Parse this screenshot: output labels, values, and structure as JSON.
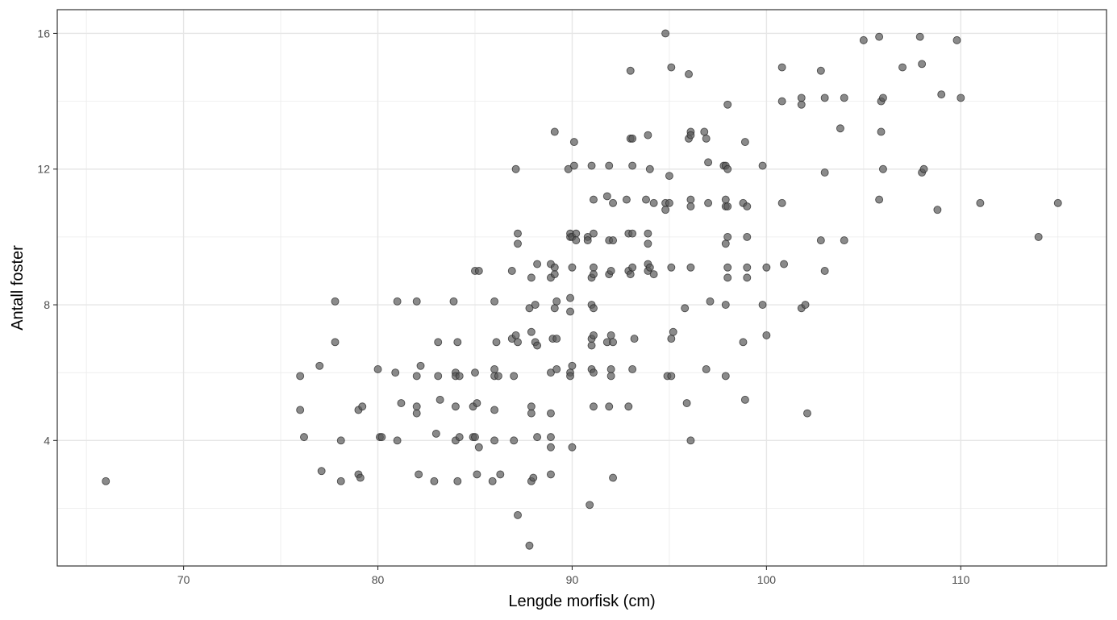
{
  "chart_data": {
    "type": "scatter",
    "title": "",
    "xlabel": "Lengde morfisk (cm)",
    "ylabel": "Antall foster",
    "xlim": [
      63.5,
      117.5
    ],
    "ylim": [
      0.3,
      16.7
    ],
    "x_ticks": [
      70,
      80,
      90,
      100,
      110
    ],
    "y_ticks": [
      4,
      8,
      12,
      16
    ],
    "grid": true,
    "legend": "none",
    "point_color": "#595959",
    "point_opacity": 0.7,
    "points": [
      [
        66,
        2.8
      ],
      [
        76,
        5.9
      ],
      [
        76,
        4.9
      ],
      [
        76.2,
        4.1
      ],
      [
        77,
        6.2
      ],
      [
        77.1,
        3.1
      ],
      [
        77.8,
        8.1
      ],
      [
        77.8,
        6.9
      ],
      [
        78.1,
        4
      ],
      [
        78.1,
        2.8
      ],
      [
        79,
        4.9
      ],
      [
        79,
        3
      ],
      [
        79.1,
        2.9
      ],
      [
        79.2,
        5
      ],
      [
        80,
        6.1
      ],
      [
        80.1,
        4.1
      ],
      [
        80.2,
        4.1
      ],
      [
        80.9,
        6
      ],
      [
        81,
        8.1
      ],
      [
        81,
        4
      ],
      [
        81.2,
        5.1
      ],
      [
        82,
        8.1
      ],
      [
        82,
        5.9
      ],
      [
        82,
        5
      ],
      [
        82,
        4.8
      ],
      [
        82.1,
        3
      ],
      [
        82.2,
        6.2
      ],
      [
        82.9,
        2.8
      ],
      [
        83,
        4.2
      ],
      [
        83.1,
        6.9
      ],
      [
        83.1,
        5.9
      ],
      [
        83.2,
        5.2
      ],
      [
        83.9,
        8.1
      ],
      [
        84,
        6
      ],
      [
        84,
        5.9
      ],
      [
        84,
        5
      ],
      [
        84,
        4
      ],
      [
        84.1,
        6.9
      ],
      [
        84.1,
        2.8
      ],
      [
        84.2,
        4.1
      ],
      [
        84.2,
        5.9
      ],
      [
        84.9,
        4.1
      ],
      [
        84.9,
        5
      ],
      [
        85,
        9
      ],
      [
        85,
        6
      ],
      [
        85,
        4.1
      ],
      [
        85.1,
        5.1
      ],
      [
        85.1,
        3
      ],
      [
        85.2,
        9
      ],
      [
        85.2,
        3.8
      ],
      [
        85.9,
        2.8
      ],
      [
        86,
        8.1
      ],
      [
        86,
        6.1
      ],
      [
        86,
        5.9
      ],
      [
        86,
        4.9
      ],
      [
        86,
        4
      ],
      [
        86.1,
        6.9
      ],
      [
        86.2,
        5.9
      ],
      [
        86.3,
        3
      ],
      [
        86.9,
        9
      ],
      [
        86.9,
        7
      ],
      [
        87,
        4
      ],
      [
        87,
        5.9
      ],
      [
        87.1,
        7.1
      ],
      [
        87.1,
        12
      ],
      [
        87.2,
        10.1
      ],
      [
        87.2,
        9.8
      ],
      [
        87.2,
        6.9
      ],
      [
        87.2,
        1.8
      ],
      [
        87.8,
        7.9
      ],
      [
        87.9,
        8.8
      ],
      [
        87.9,
        7.2
      ],
      [
        87.9,
        5
      ],
      [
        87.9,
        4.8
      ],
      [
        87.9,
        2.8
      ],
      [
        87.8,
        0.9
      ],
      [
        88,
        2.9
      ],
      [
        88.1,
        8
      ],
      [
        88.1,
        6.9
      ],
      [
        88.2,
        9.2
      ],
      [
        88.2,
        4.1
      ],
      [
        88.2,
        6.8
      ],
      [
        88.9,
        9.2
      ],
      [
        88.9,
        8.8
      ],
      [
        88.9,
        6
      ],
      [
        88.9,
        4.8
      ],
      [
        88.9,
        4.1
      ],
      [
        88.9,
        3.8
      ],
      [
        88.9,
        3
      ],
      [
        89,
        7
      ],
      [
        89.1,
        13.1
      ],
      [
        89.1,
        9.1
      ],
      [
        89.1,
        8.9
      ],
      [
        89.1,
        7.9
      ],
      [
        89.2,
        8.1
      ],
      [
        89.2,
        7
      ],
      [
        89.2,
        6.1
      ],
      [
        89.8,
        12
      ],
      [
        89.9,
        8.2
      ],
      [
        89.9,
        10
      ],
      [
        89.9,
        10.1
      ],
      [
        89.9,
        7.8
      ],
      [
        89.9,
        6
      ],
      [
        89.9,
        5.9
      ],
      [
        90,
        10
      ],
      [
        90,
        9.1
      ],
      [
        90,
        6.2
      ],
      [
        90,
        3.8
      ],
      [
        90.1,
        12.1
      ],
      [
        90.1,
        12.8
      ],
      [
        90.2,
        10.1
      ],
      [
        90.2,
        9.9
      ],
      [
        90.8,
        10
      ],
      [
        90.8,
        9.9
      ],
      [
        90.9,
        2.1
      ],
      [
        91,
        12.1
      ],
      [
        91,
        8.8
      ],
      [
        91,
        8
      ],
      [
        91,
        7
      ],
      [
        91,
        6.1
      ],
      [
        91,
        6.8
      ],
      [
        91.1,
        11.1
      ],
      [
        91.1,
        10.1
      ],
      [
        91.1,
        9.1
      ],
      [
        91.1,
        8.9
      ],
      [
        91.1,
        7.9
      ],
      [
        91.1,
        7.1
      ],
      [
        91.1,
        6
      ],
      [
        91.1,
        5
      ],
      [
        91.8,
        11.2
      ],
      [
        91.8,
        6.9
      ],
      [
        91.9,
        12.1
      ],
      [
        91.9,
        9.9
      ],
      [
        91.9,
        8.9
      ],
      [
        91.9,
        5
      ],
      [
        92,
        9
      ],
      [
        92,
        7.1
      ],
      [
        92,
        6.1
      ],
      [
        92,
        5.9
      ],
      [
        92.1,
        9.9
      ],
      [
        92.1,
        11
      ],
      [
        92.1,
        6.9
      ],
      [
        92.1,
        2.9
      ],
      [
        92.8,
        11.1
      ],
      [
        92.9,
        10.1
      ],
      [
        92.9,
        9
      ],
      [
        92.9,
        5
      ],
      [
        93,
        14.9
      ],
      [
        93,
        12.9
      ],
      [
        93,
        8.9
      ],
      [
        93.1,
        12.9
      ],
      [
        93.1,
        12.1
      ],
      [
        93.1,
        10.1
      ],
      [
        93.1,
        9.1
      ],
      [
        93.1,
        6.1
      ],
      [
        93.2,
        7
      ],
      [
        93.8,
        11.1
      ],
      [
        93.9,
        13
      ],
      [
        93.9,
        10.1
      ],
      [
        93.9,
        9.8
      ],
      [
        93.9,
        9.2
      ],
      [
        93.9,
        9
      ],
      [
        94,
        12
      ],
      [
        94,
        9.1
      ],
      [
        94.2,
        11
      ],
      [
        94.2,
        8.9
      ],
      [
        94.8,
        16
      ],
      [
        94.8,
        11
      ],
      [
        94.8,
        10.8
      ],
      [
        94.9,
        5.9
      ],
      [
        95,
        11
      ],
      [
        95,
        11.8
      ],
      [
        95.1,
        15
      ],
      [
        95.1,
        5.9
      ],
      [
        95.1,
        7
      ],
      [
        95.1,
        9.1
      ],
      [
        95.2,
        7.2
      ],
      [
        95.8,
        7.9
      ],
      [
        95.9,
        5.1
      ],
      [
        96,
        14.8
      ],
      [
        96,
        12.9
      ],
      [
        96.1,
        13.1
      ],
      [
        96.1,
        13
      ],
      [
        96.1,
        11.1
      ],
      [
        96.1,
        10.9
      ],
      [
        96.1,
        9.1
      ],
      [
        96.1,
        4
      ],
      [
        96.8,
        13.1
      ],
      [
        96.9,
        12.9
      ],
      [
        96.9,
        6.1
      ],
      [
        97,
        12.2
      ],
      [
        97,
        11
      ],
      [
        97.1,
        8.1
      ],
      [
        97.8,
        12.1
      ],
      [
        97.9,
        12.1
      ],
      [
        97.9,
        11.1
      ],
      [
        97.9,
        10.9
      ],
      [
        97.9,
        9.8
      ],
      [
        97.9,
        8
      ],
      [
        97.9,
        5.9
      ],
      [
        98,
        13.9
      ],
      [
        98,
        12
      ],
      [
        98,
        10.9
      ],
      [
        98,
        10
      ],
      [
        98,
        9.1
      ],
      [
        98,
        8.8
      ],
      [
        98.8,
        11
      ],
      [
        98.8,
        6.9
      ],
      [
        98.9,
        12.8
      ],
      [
        98.9,
        5.2
      ],
      [
        99,
        10.9
      ],
      [
        99,
        10
      ],
      [
        99,
        9.1
      ],
      [
        99,
        8.8
      ],
      [
        99.8,
        12.1
      ],
      [
        99.8,
        8
      ],
      [
        100,
        7.1
      ],
      [
        100,
        9.1
      ],
      [
        100.8,
        15
      ],
      [
        100.8,
        14
      ],
      [
        100.8,
        11
      ],
      [
        100.9,
        9.2
      ],
      [
        101.8,
        14.1
      ],
      [
        101.8,
        13.9
      ],
      [
        101.8,
        7.9
      ],
      [
        102,
        8
      ],
      [
        102.1,
        4.8
      ],
      [
        102.8,
        14.9
      ],
      [
        102.8,
        9.9
      ],
      [
        103,
        14.1
      ],
      [
        103,
        11.9
      ],
      [
        103,
        9
      ],
      [
        103.8,
        13.2
      ],
      [
        104,
        14.1
      ],
      [
        104,
        9.9
      ],
      [
        105,
        15.8
      ],
      [
        105.8,
        15.9
      ],
      [
        105.8,
        11.1
      ],
      [
        105.9,
        14
      ],
      [
        105.9,
        13.1
      ],
      [
        106,
        14.1
      ],
      [
        106,
        12
      ],
      [
        107,
        15
      ],
      [
        107.9,
        15.9
      ],
      [
        108,
        15.1
      ],
      [
        108,
        11.9
      ],
      [
        108.1,
        12
      ],
      [
        108.8,
        10.8
      ],
      [
        109,
        14.2
      ],
      [
        109.8,
        15.8
      ],
      [
        110,
        14.1
      ],
      [
        111,
        11
      ],
      [
        114,
        10
      ],
      [
        115,
        11
      ]
    ]
  }
}
